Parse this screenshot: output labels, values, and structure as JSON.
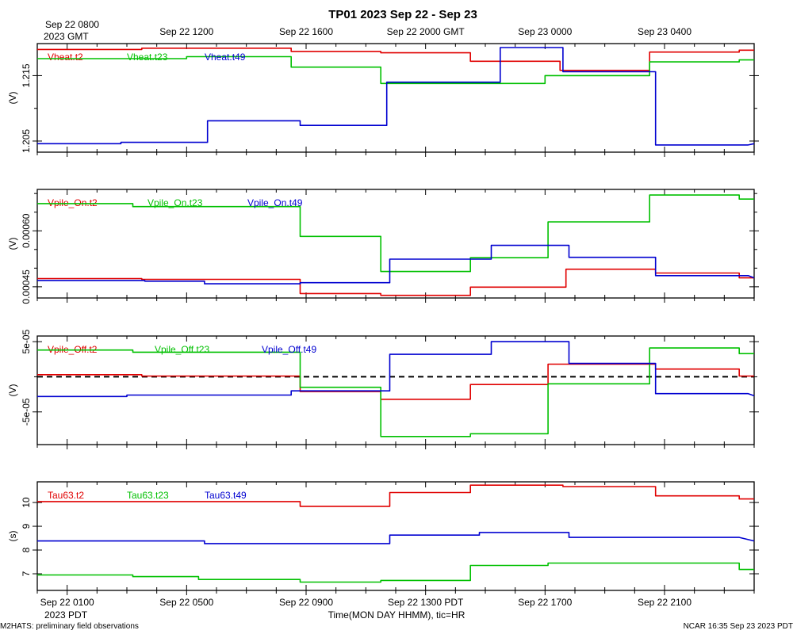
{
  "title": "TP01 2023 Sep 22 - Sep 23",
  "top_axis": {
    "corner_label": [
      "Sep 22 0800",
      "2023 GMT"
    ],
    "ticks": [
      {
        "label": "Sep 22 1200",
        "hr": 4
      },
      {
        "label": "Sep 22 1600",
        "hr": 8
      },
      {
        "label": "Sep 22 2000 GMT",
        "hr": 12
      },
      {
        "label": "Sep 23 0000",
        "hr": 16
      },
      {
        "label": "Sep 23 0400",
        "hr": 20
      }
    ]
  },
  "bottom_axis": {
    "ticks": [
      {
        "label": "Sep 22 0100",
        "hr": 0
      },
      {
        "label": "Sep 22 0500",
        "hr": 4
      },
      {
        "label": "Sep 22 0900",
        "hr": 8
      },
      {
        "label": "Sep 22 1300 PDT",
        "hr": 12
      },
      {
        "label": "Sep 22 1700",
        "hr": 16
      },
      {
        "label": "Sep 22 2100",
        "hr": 20
      }
    ],
    "corner_label": "2023 PDT",
    "xlabel": "Time(MON DAY HHMM), tic=HR",
    "x_range_hr": [
      -1,
      23
    ]
  },
  "footer": {
    "left": "M2HATS: preliminary field observations",
    "right": "NCAR 16:35 Sep 23 2023 PDT"
  },
  "colors": {
    "t2": "#e00000",
    "t23": "#00c000",
    "t49": "#0000d0"
  },
  "chart_data": [
    {
      "type": "line",
      "ylabel": "(V)",
      "ylim": [
        1.2033,
        1.2199
      ],
      "yticks": [
        1.205,
        1.215
      ],
      "ytick_labels": [
        "1.205",
        "1.215"
      ],
      "ytick_minor": [
        1.21
      ],
      "zero_line": false,
      "series": [
        {
          "name": "Vheat.t2",
          "color": "#e00000",
          "x": [
            -1,
            2.5,
            2.5,
            7.5,
            7.5,
            10.5,
            10.5,
            13.5,
            13.5,
            16.5,
            16.5,
            19.5,
            19.5,
            22.5,
            22.5,
            23
          ],
          "values": [
            1.219,
            1.219,
            1.2192,
            1.2192,
            1.2187,
            1.2187,
            1.2185,
            1.2185,
            1.2172,
            1.2172,
            1.2158,
            1.2158,
            1.2186,
            1.2186,
            1.2189,
            1.2189
          ]
        },
        {
          "name": "Vheat.t23",
          "color": "#00c000",
          "x": [
            -1,
            4,
            4,
            7.5,
            7.5,
            10.5,
            10.5,
            16,
            16,
            19.5,
            19.5,
            22.5,
            22.5,
            23
          ],
          "values": [
            1.2176,
            1.2176,
            1.2179,
            1.2179,
            1.2163,
            1.2163,
            1.2138,
            1.2138,
            1.215,
            1.215,
            1.2171,
            1.2171,
            1.2174,
            1.2174
          ]
        },
        {
          "name": "Vheat.t49",
          "color": "#0000d0",
          "x": [
            -1,
            1.8,
            1.8,
            4.7,
            4.7,
            7.8,
            7.8,
            10.7,
            10.7,
            14.5,
            14.5,
            16.6,
            16.6,
            19.7,
            19.7,
            22.8,
            23
          ],
          "values": [
            1.2046,
            1.2046,
            1.2048,
            1.2048,
            1.2081,
            1.2081,
            1.2074,
            1.2074,
            1.214,
            1.214,
            1.2193,
            1.2193,
            1.2156,
            1.2156,
            1.2044,
            1.2044,
            1.2046
          ]
        }
      ]
    },
    {
      "type": "line",
      "ylabel": "(V)",
      "ylim": [
        0.00042,
        0.000711
      ],
      "yticks": [
        0.00045,
        0.0006
      ],
      "ytick_labels": [
        "0.00045",
        "0.00060"
      ],
      "ytick_minor": [
        0.0005,
        0.00055,
        0.00065,
        0.0007
      ],
      "zero_line": false,
      "series": [
        {
          "name": "Vpile_On.t2",
          "color": "#e00000",
          "x": [
            -1,
            2.5,
            2.5,
            7.8,
            7.8,
            10.5,
            10.5,
            13.5,
            13.5,
            16.7,
            16.7,
            19.7,
            19.7,
            22.5,
            22.5,
            23
          ],
          "values": [
            0.000472,
            0.000472,
            0.00047,
            0.00047,
            0.000432,
            0.000432,
            0.000427,
            0.000427,
            0.000449,
            0.000449,
            0.000497,
            0.000497,
            0.000487,
            0.000487,
            0.000474,
            0.000474
          ]
        },
        {
          "name": "Vpile_On.t23",
          "color": "#00c000",
          "x": [
            -1,
            2.2,
            2.2,
            7.8,
            7.8,
            10.5,
            10.5,
            13.5,
            13.5,
            16.1,
            16.1,
            19.5,
            19.5,
            22.5,
            22.5,
            23
          ],
          "values": [
            0.000673,
            0.000673,
            0.000665,
            0.000665,
            0.000585,
            0.000585,
            0.000491,
            0.000491,
            0.000528,
            0.000528,
            0.000624,
            0.000624,
            0.000696,
            0.000696,
            0.000685,
            0.000685
          ]
        },
        {
          "name": "Vpile_On.t49",
          "color": "#0000d0",
          "x": [
            -1,
            2.6,
            2.6,
            4.6,
            4.6,
            7.8,
            7.8,
            10.8,
            10.8,
            14.2,
            14.2,
            16.8,
            16.8,
            19.7,
            19.7,
            22.8,
            23
          ],
          "values": [
            0.000467,
            0.000467,
            0.000465,
            0.000465,
            0.000458,
            0.000458,
            0.000461,
            0.000461,
            0.000524,
            0.000524,
            0.000561,
            0.000561,
            0.000529,
            0.000529,
            0.00048,
            0.00048,
            0.000474
          ]
        }
      ]
    },
    {
      "type": "line",
      "ylabel": "(V)",
      "ylim": [
        -9.65e-05,
        5.8e-05
      ],
      "yticks": [
        -5e-05,
        5e-05
      ],
      "ytick_labels": [
        "-5e-05",
        "5e-05"
      ],
      "ytick_minor": [
        0
      ],
      "zero_line": true,
      "series": [
        {
          "name": "Vpile_Off.t2",
          "color": "#e00000",
          "x": [
            -1,
            2.5,
            2.5,
            7.8,
            7.8,
            10.5,
            10.5,
            13.5,
            13.5,
            16.1,
            16.1,
            19.7,
            19.7,
            22.5,
            22.5,
            23
          ],
          "values": [
            3e-06,
            3e-06,
            1e-06,
            1e-06,
            -2.1e-05,
            -2.1e-05,
            -3.2e-05,
            -3.2e-05,
            -1.1e-05,
            -1.1e-05,
            1.8e-05,
            1.8e-05,
            1.1e-05,
            1.1e-05,
            1e-06,
            1e-06
          ]
        },
        {
          "name": "Vpile_Off.t23",
          "color": "#00c000",
          "x": [
            -1,
            2.2,
            2.2,
            7.8,
            7.8,
            10.5,
            10.5,
            13.5,
            13.5,
            16.1,
            16.1,
            19.5,
            19.5,
            22.5,
            22.5,
            23
          ],
          "values": [
            3.8e-05,
            3.8e-05,
            3.5e-05,
            3.5e-05,
            -1.5e-05,
            -1.5e-05,
            -8.5e-05,
            -8.5e-05,
            -8.1e-05,
            -8.1e-05,
            -1e-05,
            -1e-05,
            4.1e-05,
            4.1e-05,
            3.3e-05,
            3.3e-05
          ]
        },
        {
          "name": "Vpile_Off.t49",
          "color": "#0000d0",
          "x": [
            -1,
            2.0,
            2.0,
            7.5,
            7.5,
            10.8,
            10.8,
            14.2,
            14.2,
            16.8,
            16.8,
            19.7,
            19.7,
            22.8,
            23
          ],
          "values": [
            -2.8e-05,
            -2.8e-05,
            -2.6e-05,
            -2.6e-05,
            -2e-05,
            -2e-05,
            3.2e-05,
            3.2e-05,
            5e-05,
            5e-05,
            1.9e-05,
            1.9e-05,
            -2.4e-05,
            -2.4e-05,
            -2.7e-05
          ]
        }
      ]
    },
    {
      "type": "line",
      "ylabel": "(s)",
      "ylim": [
        6.3,
        10.87
      ],
      "yticks": [
        7,
        8,
        9,
        10
      ],
      "ytick_labels": [
        "7",
        "8",
        "9",
        "10"
      ],
      "ytick_minor": [],
      "zero_line": false,
      "series": [
        {
          "name": "Tau63.t2",
          "color": "#e00000",
          "x": [
            -1,
            7.8,
            7.8,
            10.8,
            10.8,
            13.5,
            13.5,
            16.6,
            16.6,
            19.7,
            19.7,
            22.5,
            22.5,
            23
          ],
          "values": [
            10.04,
            10.04,
            9.84,
            9.84,
            10.42,
            10.42,
            10.73,
            10.73,
            10.67,
            10.67,
            10.28,
            10.28,
            10.15,
            10.15
          ]
        },
        {
          "name": "Tau63.t23",
          "color": "#00c000",
          "x": [
            -1,
            2.2,
            2.2,
            4.4,
            4.4,
            7.8,
            7.8,
            10.5,
            10.5,
            13.5,
            13.5,
            16.1,
            16.1,
            22.5,
            22.5,
            23
          ],
          "values": [
            6.95,
            6.95,
            6.88,
            6.88,
            6.76,
            6.76,
            6.65,
            6.65,
            6.72,
            6.72,
            7.35,
            7.35,
            7.45,
            7.45,
            7.18,
            7.18
          ]
        },
        {
          "name": "Tau63.t49",
          "color": "#0000d0",
          "x": [
            -1,
            4.6,
            4.6,
            10.8,
            10.8,
            13.8,
            13.8,
            16.8,
            16.8,
            22.5,
            23
          ],
          "values": [
            8.38,
            8.38,
            8.27,
            8.27,
            8.63,
            8.63,
            8.74,
            8.74,
            8.53,
            8.53,
            8.38
          ]
        }
      ]
    }
  ]
}
